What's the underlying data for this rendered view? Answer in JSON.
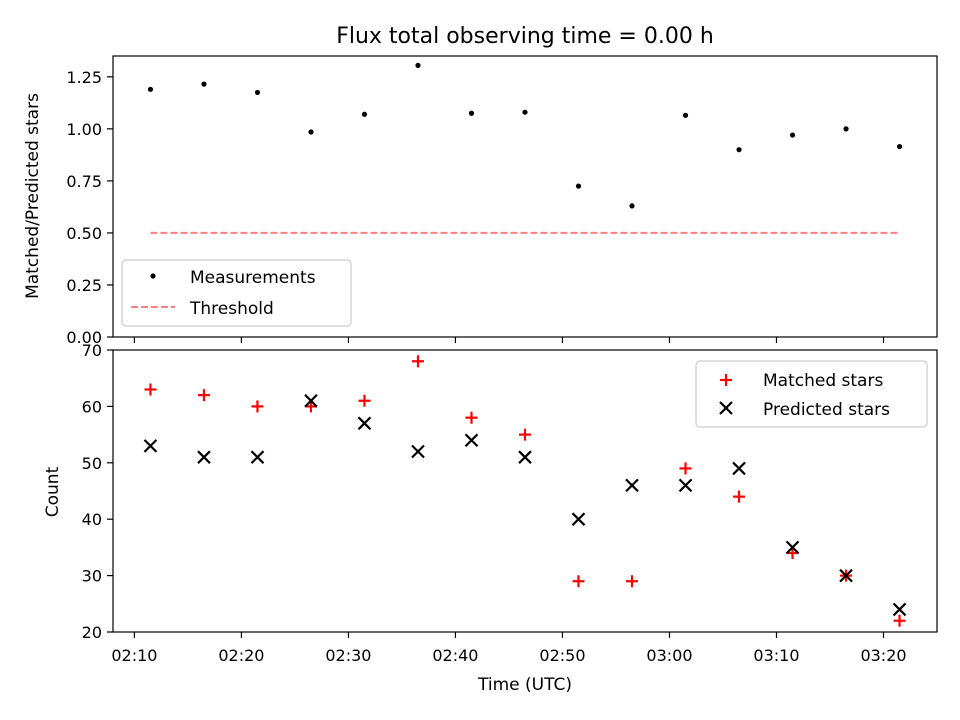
{
  "chart_data": [
    {
      "type": "scatter",
      "title": "Flux total observing time = 0.00 h",
      "ylabel": "Matched/Predicted stars",
      "xlabel": "",
      "ylim": [
        0,
        1.35
      ],
      "yticks": [
        "0.00",
        "0.25",
        "0.50",
        "0.75",
        "1.00",
        "1.25"
      ],
      "series": [
        {
          "name": "Measurements",
          "color": "#000000",
          "marker": "dot",
          "x": [
            "02:11:30",
            "02:16:30",
            "02:21:30",
            "02:26:30",
            "02:31:30",
            "02:36:30",
            "02:41:30",
            "02:46:30",
            "02:51:30",
            "02:56:30",
            "03:01:30",
            "03:06:30",
            "03:11:30",
            "03:16:30",
            "03:21:30"
          ],
          "y": [
            1.19,
            1.215,
            1.175,
            0.985,
            1.07,
            1.305,
            1.075,
            1.08,
            0.725,
            0.63,
            1.065,
            0.9,
            0.97,
            1.0,
            0.915
          ]
        },
        {
          "name": "Threshold",
          "color": "#ff7f7f",
          "line_style": "dashed",
          "x": [
            "02:11:30",
            "03:21:30"
          ],
          "y": [
            0.5,
            0.5
          ]
        }
      ],
      "legend_position": "lower-left"
    },
    {
      "type": "scatter",
      "title": "",
      "xlabel": "Time (UTC)",
      "ylabel": "Count",
      "ylim": [
        20,
        70
      ],
      "yticks": [
        "20",
        "30",
        "40",
        "50",
        "60",
        "70"
      ],
      "xlim": [
        "02:08",
        "03:25"
      ],
      "xticks": [
        "02:10",
        "02:20",
        "02:30",
        "02:40",
        "02:50",
        "03:00",
        "03:10",
        "03:20"
      ],
      "series": [
        {
          "name": "Matched stars",
          "color": "#ff0000",
          "marker": "plus",
          "x": [
            "02:11:30",
            "02:16:30",
            "02:21:30",
            "02:26:30",
            "02:31:30",
            "02:36:30",
            "02:41:30",
            "02:46:30",
            "02:51:30",
            "02:56:30",
            "03:01:30",
            "03:06:30",
            "03:11:30",
            "03:16:30",
            "03:21:30"
          ],
          "y": [
            63,
            62,
            60,
            60,
            61,
            68,
            58,
            55,
            29,
            29,
            49,
            44,
            34,
            30,
            22
          ]
        },
        {
          "name": "Predicted stars",
          "color": "#000000",
          "marker": "x",
          "x": [
            "02:11:30",
            "02:16:30",
            "02:21:30",
            "02:26:30",
            "02:31:30",
            "02:36:30",
            "02:41:30",
            "02:46:30",
            "02:51:30",
            "02:56:30",
            "03:01:30",
            "03:06:30",
            "03:11:30",
            "03:16:30",
            "03:21:30"
          ],
          "y": [
            53,
            51,
            51,
            61,
            57,
            52,
            54,
            51,
            40,
            46,
            46,
            49,
            35,
            30,
            24
          ]
        }
      ],
      "legend_position": "upper-right"
    }
  ]
}
